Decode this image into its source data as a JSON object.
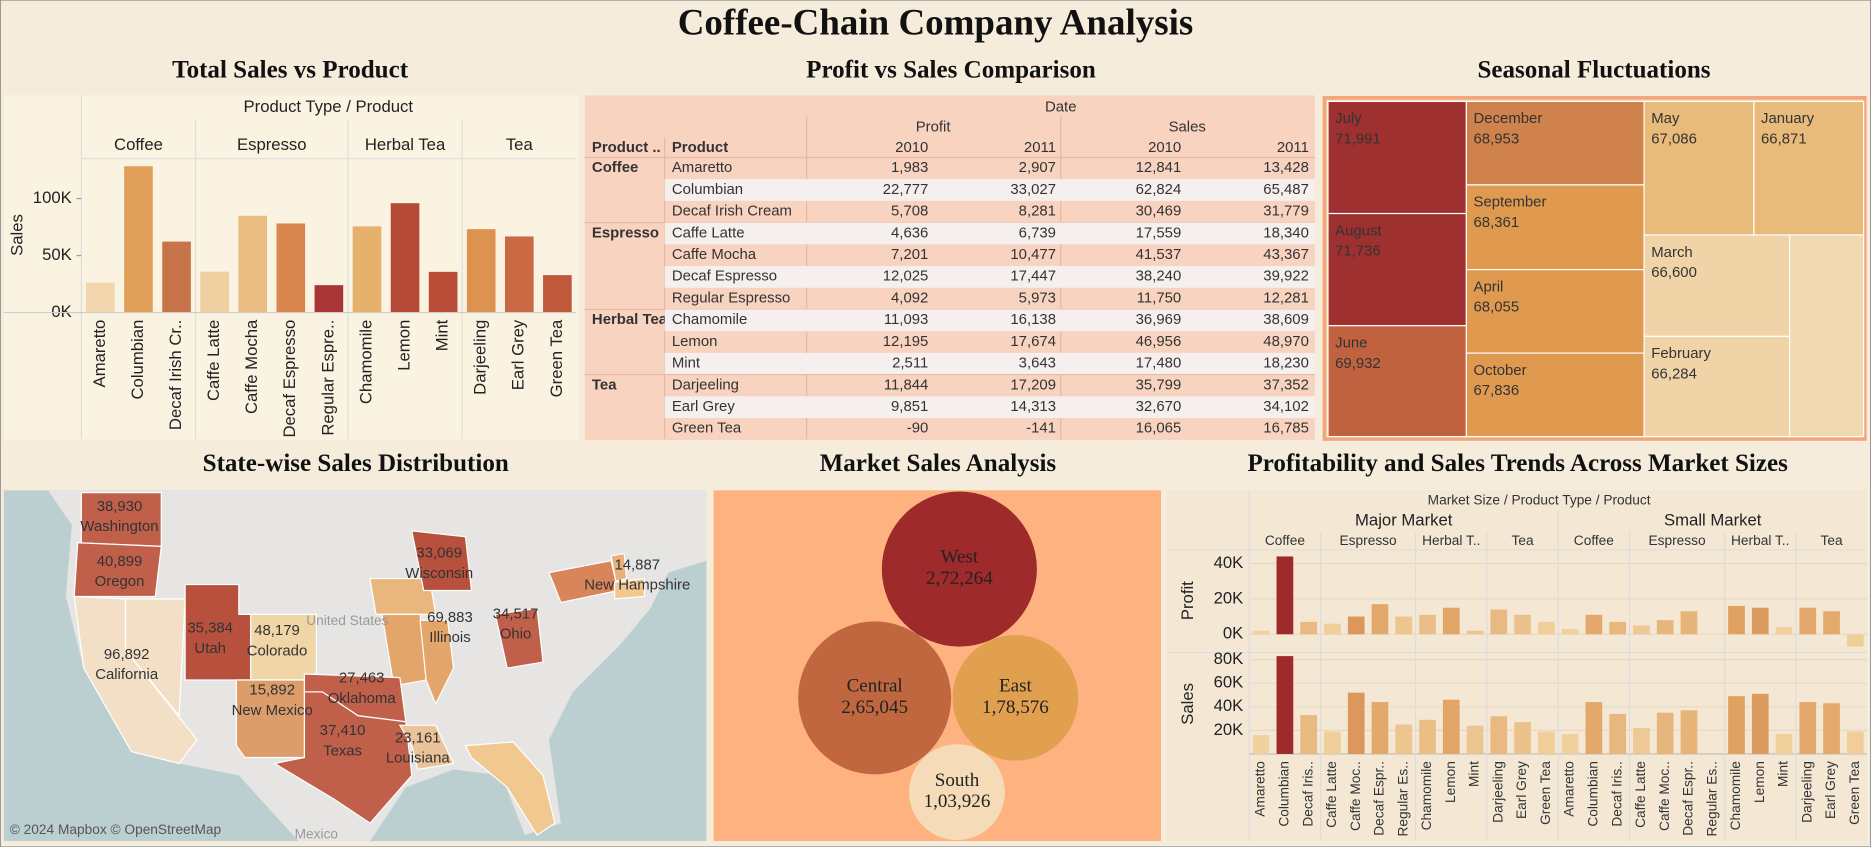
{
  "title": "Coffee-Chain Company Analysis",
  "chart_data": [
    {
      "type": "bar",
      "title": "Total Sales vs Product",
      "header": "Product Type / Product",
      "y_label": "Sales",
      "ylim": [
        0,
        135000
      ],
      "yticks": [
        {
          "value": 0,
          "label": "0K"
        },
        {
          "value": 50000,
          "label": "50K"
        },
        {
          "value": 100000,
          "label": "100K"
        }
      ],
      "groups": [
        {
          "name": "Coffee",
          "categories": [
            "Amaretto",
            "Columbian",
            "Decaf Irish Cr.."
          ],
          "values": [
            26269,
            128311,
            62248
          ],
          "colors": [
            "#f1d6ae",
            "#e0a05a",
            "#c8744a"
          ]
        },
        {
          "name": "Espresso",
          "categories": [
            "Caffe Latte",
            "Caffe Mocha",
            "Decaf Espresso",
            "Regular Espre.."
          ],
          "values": [
            35899,
            84904,
            78162,
            24031
          ],
          "colors": [
            "#f0cfa0",
            "#e9bd82",
            "#d9874f",
            "#a93535"
          ]
        },
        {
          "name": "Herbal Tea",
          "categories": [
            "Chamomile",
            "Lemon",
            "Mint"
          ],
          "values": [
            75578,
            95926,
            35710
          ],
          "colors": [
            "#e6b16d",
            "#b44a35",
            "#b94d38"
          ]
        },
        {
          "name": "Tea",
          "categories": [
            "Darjeeling",
            "Earl Grey",
            "Green Tea"
          ],
          "values": [
            73151,
            66772,
            32850
          ],
          "colors": [
            "#dc934f",
            "#c96a44",
            "#c0583c"
          ]
        }
      ]
    },
    {
      "type": "table",
      "title": "Profit vs Sales Comparison",
      "header": "Date",
      "measures": [
        "Profit",
        "Sales"
      ],
      "years": [
        "2010",
        "2011"
      ],
      "row_headers": [
        "Product ..",
        "Product"
      ],
      "groups": [
        {
          "name": "Coffee",
          "rows": [
            {
              "product": "Amaretto",
              "cells": [
                "1,983",
                "2,907",
                "12,841",
                "13,428"
              ]
            },
            {
              "product": "Columbian",
              "cells": [
                "22,777",
                "33,027",
                "62,824",
                "65,487"
              ]
            },
            {
              "product": "Decaf Irish Cream",
              "cells": [
                "5,708",
                "8,281",
                "30,469",
                "31,779"
              ]
            }
          ]
        },
        {
          "name": "Espresso",
          "rows": [
            {
              "product": "Caffe Latte",
              "cells": [
                "4,636",
                "6,739",
                "17,559",
                "18,340"
              ]
            },
            {
              "product": "Caffe Mocha",
              "cells": [
                "7,201",
                "10,477",
                "41,537",
                "43,367"
              ]
            },
            {
              "product": "Decaf Espresso",
              "cells": [
                "12,025",
                "17,447",
                "38,240",
                "39,922"
              ]
            },
            {
              "product": "Regular Espresso",
              "cells": [
                "4,092",
                "5,973",
                "11,750",
                "12,281"
              ]
            }
          ]
        },
        {
          "name": "Herbal Tea",
          "rows": [
            {
              "product": "Chamomile",
              "cells": [
                "11,093",
                "16,138",
                "36,969",
                "38,609"
              ]
            },
            {
              "product": "Lemon",
              "cells": [
                "12,195",
                "17,674",
                "46,956",
                "48,970"
              ]
            },
            {
              "product": "Mint",
              "cells": [
                "2,511",
                "3,643",
                "17,480",
                "18,230"
              ]
            }
          ]
        },
        {
          "name": "Tea",
          "rows": [
            {
              "product": "Darjeeling",
              "cells": [
                "11,844",
                "17,209",
                "35,799",
                "37,352"
              ]
            },
            {
              "product": "Earl Grey",
              "cells": [
                "9,851",
                "14,313",
                "32,670",
                "34,102"
              ]
            },
            {
              "product": "Green Tea",
              "cells": [
                "-90",
                "-141",
                "16,065",
                "16,785"
              ]
            }
          ]
        }
      ]
    },
    {
      "type": "treemap",
      "title": "Seasonal Fluctuations",
      "categories": [
        "July",
        "August",
        "June",
        "December",
        "September",
        "April",
        "October",
        "May",
        "January",
        "March",
        "February",
        null
      ],
      "values": [
        71991,
        71736,
        69932,
        68953,
        68361,
        68055,
        67836,
        67086,
        66871,
        66600,
        66284,
        64500
      ],
      "value_labels": [
        "71,991",
        "71,736",
        "69,932",
        "68,953",
        "68,361",
        "68,055",
        "67,836",
        "67,086",
        "66,871",
        "66,600",
        "66,284",
        null
      ],
      "colors": [
        "#9e3030",
        "#9e3030",
        "#c0623f",
        "#d0824c",
        "#e09a50",
        "#e09a50",
        "#e09a50",
        "#e8bb7a",
        "#e8bb7a",
        "#f0d4a8",
        "#f0d4a8",
        "#f0d8b0"
      ]
    },
    {
      "type": "map",
      "title": "State-wise Sales Distribution",
      "categories": [
        "Washington",
        "Oregon",
        "California",
        "Utah",
        "Colorado",
        "New Mexico",
        "Oklahoma",
        "Texas",
        "Louisiana",
        "Illinois",
        "Wisconsin",
        "Ohio",
        "New Hampshire"
      ],
      "values": [
        38930,
        40899,
        96892,
        35384,
        48179,
        15892,
        27463,
        37410,
        23161,
        69883,
        33069,
        34517,
        14887
      ],
      "value_labels": [
        "38,930",
        "40,899",
        "96,892",
        "35,384",
        "48,179",
        "15,892",
        "27,463",
        "37,410",
        "23,161",
        "69,883",
        "33,069",
        "34,517",
        "14,887"
      ],
      "colors": [
        "#c0604a",
        "#c0604a",
        "#f3dfc5",
        "#b8503e",
        "#f0d6a6",
        "#dd9d6a",
        "#c0604a",
        "#c0604a",
        "#eac39a",
        "#e3a56a",
        "#b8503e",
        "#c0604a",
        "#e8b07a"
      ],
      "place_labels": [
        "United States",
        "Mexico"
      ],
      "attribution": "© 2024 Mapbox © OpenStreetMap"
    },
    {
      "type": "bubble",
      "title": "Market Sales Analysis",
      "categories": [
        "West",
        "Central",
        "East",
        "South"
      ],
      "values": [
        272264,
        265045,
        178576,
        103926
      ],
      "value_labels": [
        "2,72,264",
        "2,65,045",
        "1,78,576",
        "1,03,926"
      ],
      "colors": [
        "#9e2a2b",
        "#c0673f",
        "#e0a050",
        "#f5dbb8"
      ]
    },
    {
      "type": "bar",
      "title": "Profitability and Sales Trends Across Market Sizes",
      "header": "Market Size / Product Type / Product",
      "color_scale": [
        "#f0d2a0",
        "#e0a060",
        "#9e2a2b"
      ],
      "rows": [
        {
          "label": "Profit",
          "ylim": [
            -9000,
            47000
          ],
          "yticks": [
            {
              "value": 0,
              "label": "0K"
            },
            {
              "value": 20000,
              "label": "20K"
            },
            {
              "value": 40000,
              "label": "40K"
            }
          ]
        },
        {
          "label": "Sales",
          "ylim": [
            0,
            85000
          ],
          "yticks": [
            {
              "value": 20000,
              "label": "20K"
            },
            {
              "value": 40000,
              "label": "40K"
            },
            {
              "value": 60000,
              "label": "60K"
            },
            {
              "value": 80000,
              "label": "80K"
            }
          ]
        }
      ],
      "markets": [
        {
          "name": "Major Market",
          "groups": [
            {
              "name": "Coffee",
              "categories": [
                "Amaretto",
                "Columbian",
                "Decaf Iris.."
              ],
              "values": [
                [
                  2000,
                  44000,
                  7000
                ],
                [
                  16000,
                  83000,
                  33000
                ]
              ]
            },
            {
              "name": "Espresso",
              "categories": [
                "Caffe Latte",
                "Caffe Moc..",
                "Decaf Espr..",
                "Regular Es.."
              ],
              "values": [
                [
                  6000,
                  10000,
                  17000,
                  10000
                ],
                [
                  19000,
                  52000,
                  44000,
                  25000
                ]
              ]
            },
            {
              "name": "Herbal T..",
              "categories": [
                "Chamomile",
                "Lemon",
                "Mint"
              ],
              "values": [
                [
                  11000,
                  15000,
                  2000
                ],
                [
                  29000,
                  46000,
                  24000
                ]
              ]
            },
            {
              "name": "Tea",
              "categories": [
                "Darjeeling",
                "Earl Grey",
                "Green Tea"
              ],
              "values": [
                [
                  14000,
                  11000,
                  7000
                ],
                [
                  32000,
                  27000,
                  19000
                ]
              ]
            }
          ]
        },
        {
          "name": "Small Market",
          "groups": [
            {
              "name": "Coffee",
              "categories": [
                "Amaretto",
                "Columbian",
                "Decaf Iris.."
              ],
              "values": [
                [
                  3000,
                  11000,
                  7000
                ],
                [
                  17000,
                  44000,
                  34000
                ]
              ]
            },
            {
              "name": "Espresso",
              "categories": [
                "Caffe Latte",
                "Caffe Moc..",
                "Decaf Espr..",
                "Regular Es.."
              ],
              "values": [
                [
                  5000,
                  8000,
                  13000,
                  null
                ],
                [
                  22000,
                  35000,
                  37000,
                  null
                ]
              ]
            },
            {
              "name": "Herbal T..",
              "categories": [
                "Chamomile",
                "Lemon",
                "Mint"
              ],
              "values": [
                [
                  16000,
                  15000,
                  4000
                ],
                [
                  49000,
                  51000,
                  17000
                ]
              ]
            },
            {
              "name": "Tea",
              "categories": [
                "Darjeeling",
                "Earl Grey",
                "Green Tea"
              ],
              "values": [
                [
                  15000,
                  13000,
                  -7000
                ],
                [
                  44000,
                  43000,
                  19000
                ]
              ]
            }
          ]
        }
      ]
    }
  ]
}
